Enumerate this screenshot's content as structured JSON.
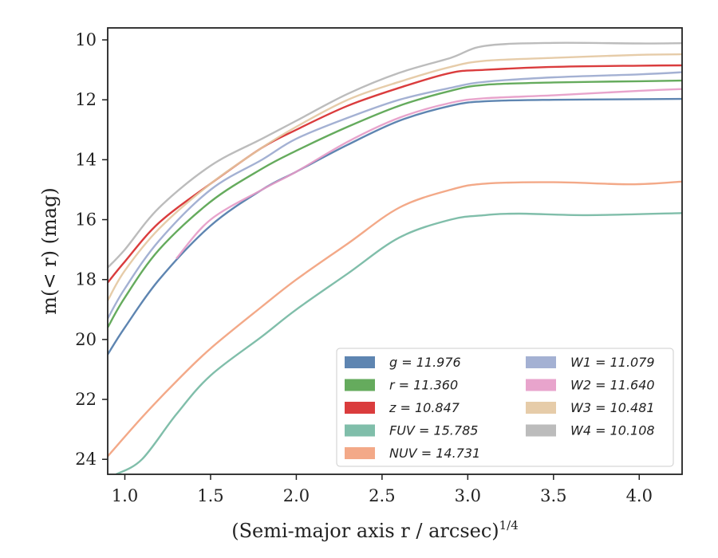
{
  "chart_data": {
    "type": "line",
    "xlabel": "(Semi-major axis r / arcsec)",
    "xlabel_italic_part": "r",
    "xlabel_exponent": "1/4",
    "ylabel": "m(< r) (mag)",
    "xlim": [
      0.9,
      4.25
    ],
    "ylim": [
      24.5,
      9.6
    ],
    "y_inverted": true,
    "xticks": [
      1.0,
      1.5,
      2.0,
      2.5,
      3.0,
      3.5,
      4.0
    ],
    "xtick_labels": [
      "1.0",
      "1.5",
      "2.0",
      "2.5",
      "3.0",
      "3.5",
      "4.0"
    ],
    "yticks": [
      10,
      12,
      14,
      16,
      18,
      20,
      22,
      24
    ],
    "ytick_labels": [
      "10",
      "12",
      "14",
      "16",
      "18",
      "20",
      "22",
      "24"
    ],
    "legend_placement": "lower-right",
    "legend_columns": 2,
    "grid": false,
    "series": [
      {
        "name": "g = 11.976",
        "color": "#4c78a8",
        "x": [
          0.9,
          1.0,
          1.2,
          1.5,
          1.8,
          2.0,
          2.3,
          2.6,
          2.9,
          3.1,
          3.5,
          4.0,
          4.25
        ],
        "y": [
          20.5,
          19.6,
          18.0,
          16.2,
          15.0,
          14.4,
          13.5,
          12.7,
          12.2,
          12.05,
          12.0,
          11.98,
          11.97
        ]
      },
      {
        "name": "r = 11.360",
        "color": "#54a24b",
        "x": [
          0.9,
          1.0,
          1.2,
          1.5,
          1.8,
          2.0,
          2.3,
          2.6,
          2.9,
          3.1,
          3.5,
          4.0,
          4.25
        ],
        "y": [
          19.6,
          18.6,
          17.0,
          15.4,
          14.3,
          13.7,
          12.9,
          12.2,
          11.7,
          11.5,
          11.42,
          11.38,
          11.36
        ]
      },
      {
        "name": "z = 10.847",
        "color": "#d62728",
        "x": [
          0.9,
          1.0,
          1.2,
          1.5,
          1.8,
          2.0,
          2.3,
          2.6,
          2.9,
          3.1,
          3.5,
          4.0,
          4.25
        ],
        "y": [
          18.1,
          17.4,
          16.1,
          14.8,
          13.6,
          13.0,
          12.2,
          11.6,
          11.1,
          11.0,
          10.9,
          10.86,
          10.85
        ]
      },
      {
        "name": "FUV = 15.785",
        "color": "#72b7a1",
        "x": [
          0.95,
          1.1,
          1.3,
          1.5,
          1.8,
          2.0,
          2.3,
          2.6,
          2.9,
          3.1,
          3.3,
          3.7,
          4.25
        ],
        "y": [
          24.5,
          24.0,
          22.5,
          21.2,
          19.9,
          19.0,
          17.8,
          16.6,
          16.0,
          15.85,
          15.8,
          15.85,
          15.78
        ]
      },
      {
        "name": "NUV = 14.731",
        "color": "#f2a07b",
        "x": [
          0.9,
          1.1,
          1.3,
          1.5,
          1.8,
          2.0,
          2.3,
          2.6,
          2.9,
          3.1,
          3.5,
          3.95,
          4.25
        ],
        "y": [
          23.9,
          22.6,
          21.4,
          20.3,
          18.9,
          18.0,
          16.8,
          15.6,
          15.0,
          14.8,
          14.75,
          14.82,
          14.73
        ]
      },
      {
        "name": "W1 = 11.079",
        "color": "#9aa9ce",
        "x": [
          0.9,
          1.0,
          1.2,
          1.5,
          1.8,
          2.0,
          2.3,
          2.6,
          2.9,
          3.1,
          3.5,
          4.0,
          4.25
        ],
        "y": [
          19.3,
          18.3,
          16.7,
          15.0,
          14.0,
          13.3,
          12.6,
          12.0,
          11.6,
          11.4,
          11.25,
          11.15,
          11.08
        ]
      },
      {
        "name": "W2 = 11.640",
        "color": "#e59ac6",
        "x": [
          1.3,
          1.5,
          1.8,
          2.0,
          2.3,
          2.6,
          2.9,
          3.1,
          3.5,
          4.0,
          4.25
        ],
        "y": [
          17.3,
          16.0,
          15.0,
          14.4,
          13.4,
          12.6,
          12.1,
          11.95,
          11.85,
          11.7,
          11.64
        ]
      },
      {
        "name": "W3 = 10.481",
        "color": "#e3c7a0",
        "x": [
          0.9,
          1.0,
          1.2,
          1.5,
          1.8,
          2.0,
          2.3,
          2.6,
          2.9,
          3.1,
          3.5,
          4.0,
          4.25
        ],
        "y": [
          18.7,
          17.7,
          16.3,
          14.8,
          13.6,
          12.9,
          12.0,
          11.4,
          10.9,
          10.7,
          10.6,
          10.5,
          10.48
        ]
      },
      {
        "name": "W4 = 10.108",
        "color": "#b5b5b5",
        "x": [
          0.9,
          1.0,
          1.2,
          1.5,
          1.8,
          2.0,
          2.3,
          2.6,
          2.9,
          3.1,
          3.5,
          4.0,
          4.25
        ],
        "y": [
          17.6,
          17.0,
          15.6,
          14.2,
          13.3,
          12.7,
          11.8,
          11.1,
          10.6,
          10.2,
          10.1,
          10.12,
          10.11
        ]
      }
    ]
  }
}
